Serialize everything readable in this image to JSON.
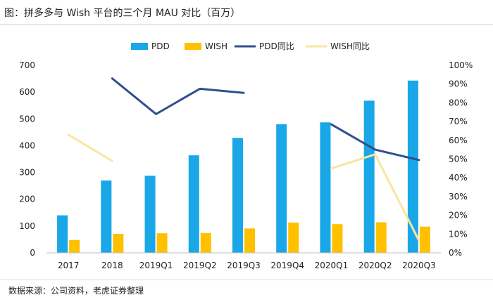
{
  "title": "图：拼多多与 Wish 平台的三个月 MAU 对比（百万）",
  "source": "数据来源：公司资料，老虎证券整理",
  "chart_data": {
    "type": "bar",
    "categories": [
      "2017",
      "2018",
      "2019Q1",
      "2019Q2",
      "2019Q3",
      "2019Q4",
      "2020Q1",
      "2020Q2",
      "2020Q3"
    ],
    "series": [
      {
        "name": "PDD",
        "type": "bar",
        "axis": "left",
        "color": "#1aa7e8",
        "values": [
          140,
          270,
          288,
          364,
          429,
          480,
          487,
          568,
          643
        ]
      },
      {
        "name": "WISH",
        "type": "bar",
        "axis": "left",
        "color": "#ffc000",
        "values": [
          48,
          71,
          73,
          74,
          91,
          113,
          107,
          114,
          98
        ]
      },
      {
        "name": "PDD同比",
        "type": "line",
        "axis": "right",
        "color": "#2f4f8f",
        "values": [
          null,
          0.93,
          0.74,
          0.875,
          0.853,
          null,
          0.685,
          0.55,
          0.495
        ]
      },
      {
        "name": "WISH同比",
        "type": "line",
        "axis": "right",
        "color": "#fae5a0",
        "values": [
          0.63,
          0.49,
          null,
          null,
          null,
          null,
          0.45,
          0.525,
          0.065
        ]
      }
    ],
    "y_left": {
      "min": 0,
      "max": 700,
      "ticks": [
        "0",
        "100",
        "200",
        "300",
        "400",
        "500",
        "600",
        "700"
      ]
    },
    "y_right": {
      "min": 0,
      "max": 1.0,
      "ticks": [
        "0%",
        "10%",
        "20%",
        "30%",
        "40%",
        "50%",
        "60%",
        "70%",
        "80%",
        "90%",
        "100%"
      ]
    },
    "legend_position": "top-center",
    "grid": false
  }
}
